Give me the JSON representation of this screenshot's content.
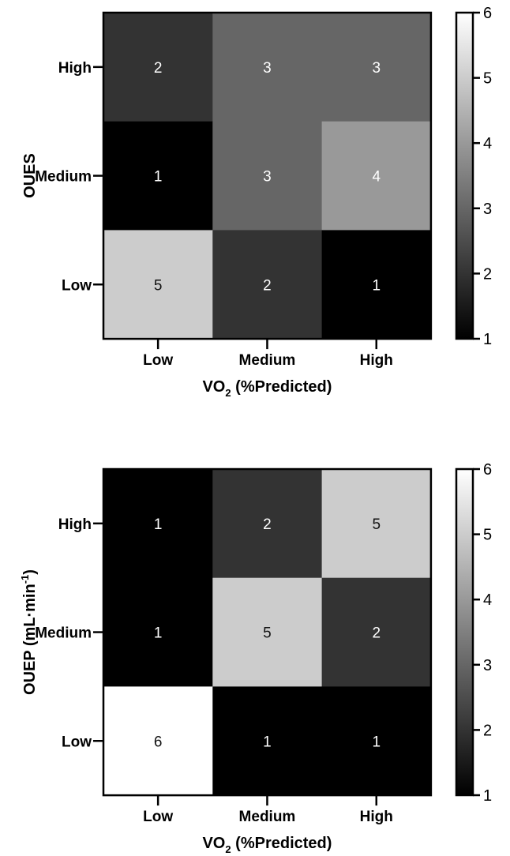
{
  "chart_data": [
    {
      "type": "heatmap",
      "title": "",
      "x_categories": [
        "Low",
        "Medium",
        "High"
      ],
      "y_categories": [
        "High",
        "Medium",
        "Low"
      ],
      "values": [
        [
          2,
          3,
          3
        ],
        [
          1,
          3,
          4
        ],
        [
          5,
          2,
          1
        ]
      ],
      "xlabel": {
        "main": "VO",
        "sub": "2",
        "rest": " (%Predicted)"
      },
      "ylabel": {
        "main": "OUES",
        "sup": "",
        "close": ""
      },
      "colorbar": {
        "range": [
          1,
          6
        ],
        "ticks": [
          "1",
          "2",
          "3",
          "4",
          "5",
          "6"
        ]
      },
      "colormap": [
        "#000000",
        "#ffffff"
      ]
    },
    {
      "type": "heatmap",
      "title": "",
      "x_categories": [
        "Low",
        "Medium",
        "High"
      ],
      "y_categories": [
        "High",
        "Medium",
        "Low"
      ],
      "values": [
        [
          1,
          2,
          5
        ],
        [
          1,
          5,
          2
        ],
        [
          6,
          1,
          1
        ]
      ],
      "xlabel": {
        "main": "VO",
        "sub": "2",
        "rest": " (%Predicted)"
      },
      "ylabel": {
        "main": "OUEP (mL·min",
        "sup": "-1",
        "close": ")"
      },
      "colorbar": {
        "range": [
          1,
          6
        ],
        "ticks": [
          "1",
          "2",
          "3",
          "4",
          "5",
          "6"
        ]
      },
      "colormap": [
        "#000000",
        "#ffffff"
      ]
    }
  ]
}
